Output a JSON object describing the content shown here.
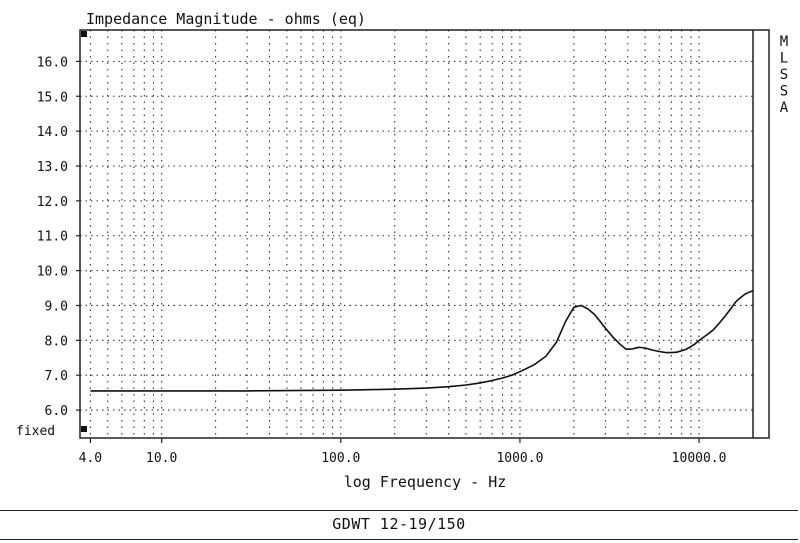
{
  "chart_data": {
    "type": "line",
    "title": "Impedance Magnitude - ohms (eq)",
    "xlabel": "log Frequency - Hz",
    "ylabel": "",
    "xscale": "log",
    "xlim": [
      3.5,
      20000
    ],
    "ylim": [
      5.2,
      16.9
    ],
    "x_tick_labels": [
      {
        "value": 4,
        "label": "4.0"
      },
      {
        "value": 10,
        "label": "10.0"
      },
      {
        "value": 100,
        "label": "100.0"
      },
      {
        "value": 1000,
        "label": "1000.0"
      },
      {
        "value": 10000,
        "label": "10000.0"
      }
    ],
    "y_tick_labels": [
      {
        "value": 6,
        "label": "6.0"
      },
      {
        "value": 7,
        "label": "7.0"
      },
      {
        "value": 8,
        "label": "8.0"
      },
      {
        "value": 9,
        "label": "9.0"
      },
      {
        "value": 10,
        "label": "10.0"
      },
      {
        "value": 11,
        "label": "11.0"
      },
      {
        "value": 12,
        "label": "12.0"
      },
      {
        "value": 13,
        "label": "13.0"
      },
      {
        "value": 14,
        "label": "14.0"
      },
      {
        "value": 15,
        "label": "15.0"
      },
      {
        "value": 16,
        "label": "16.0"
      }
    ],
    "bottom_left_label": "fixed",
    "side_label": [
      "M",
      "L",
      "S",
      "S",
      "A"
    ],
    "grid": true,
    "series": [
      {
        "x": [
          4,
          10,
          30,
          100,
          200,
          300,
          400,
          500,
          600,
          700,
          800,
          900,
          1000,
          1200,
          1400,
          1600,
          1800,
          2000,
          2200,
          2400,
          2600,
          2800,
          3000,
          3300,
          3600,
          3900,
          4200,
          4600,
          5000,
          5500,
          6000,
          6500,
          7000,
          7500,
          8000,
          8500,
          9000,
          9500,
          10000,
          11000,
          12000,
          13000,
          14000,
          15000,
          16000,
          17000,
          18000,
          19000,
          20000
        ],
        "y": [
          6.55,
          6.55,
          6.55,
          6.57,
          6.6,
          6.63,
          6.67,
          6.72,
          6.78,
          6.85,
          6.92,
          7.0,
          7.1,
          7.3,
          7.55,
          7.95,
          8.55,
          8.95,
          9.0,
          8.9,
          8.75,
          8.55,
          8.35,
          8.1,
          7.9,
          7.75,
          7.75,
          7.8,
          7.78,
          7.72,
          7.68,
          7.65,
          7.65,
          7.66,
          7.7,
          7.75,
          7.82,
          7.9,
          8.0,
          8.15,
          8.3,
          8.5,
          8.7,
          8.9,
          9.1,
          9.22,
          9.32,
          9.38,
          9.42
        ]
      }
    ]
  },
  "footer": {
    "label": "GDWT 12-19/150"
  }
}
